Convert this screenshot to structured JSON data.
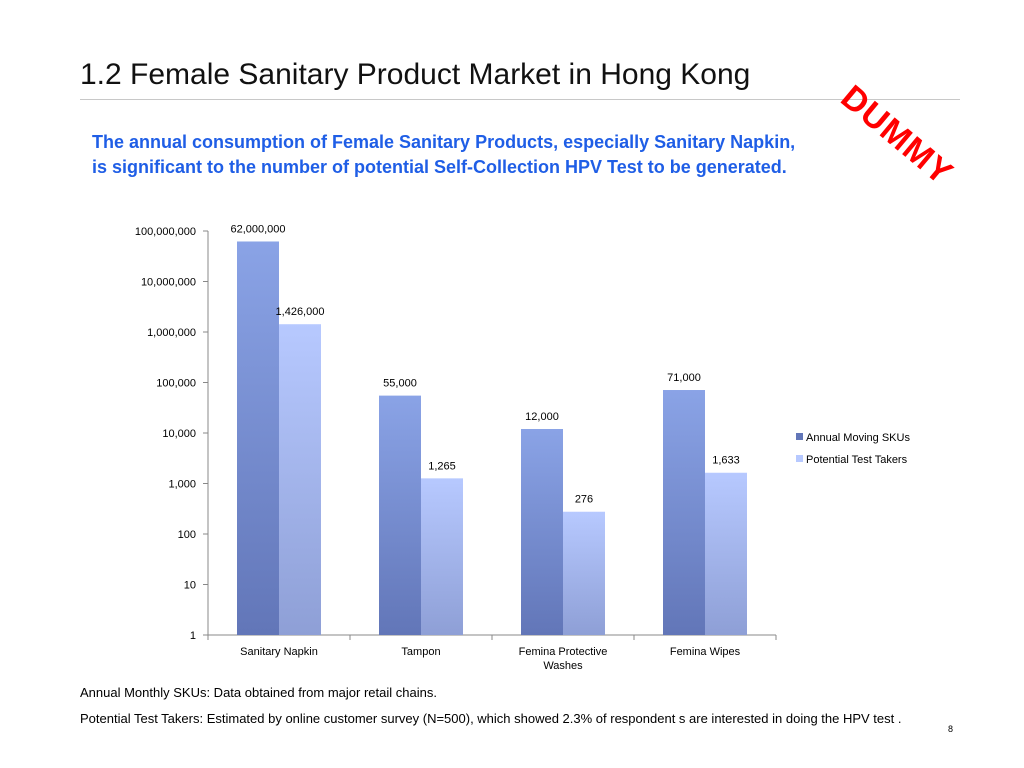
{
  "slide": {
    "title": "1.2 Female Sanitary Product Market in Hong Kong",
    "stamp": "DUMMY",
    "subtitle_lines": [
      "The annual consumption of Female Sanitary Products, especially Sanitary Napkin,",
      "is significant to the number of potential Self-Collection HPV Test to be generated."
    ],
    "notes": [
      "Annual Monthly SKUs: Data obtained from major retail chains.",
      "Potential Test Takers: Estimated  by online customer survey (N=500), which showed 2.3% of respondent s are interested in doing the HPV test ."
    ],
    "page_number": "8"
  },
  "colors": {
    "title_text": "#111111",
    "subtitle_text": "#1f5ee6",
    "stamp": "#ff0000",
    "series_1_top": "#8aa3e6",
    "series_1_bottom": "#6276b8",
    "series_2_top": "#b7c9ff",
    "series_2_bottom": "#8e9fd6"
  },
  "chart_data": {
    "type": "bar",
    "scale": "log",
    "ylim": [
      1,
      100000000
    ],
    "y_ticks": [
      1,
      10,
      100,
      1000,
      10000,
      100000,
      1000000,
      10000000,
      100000000
    ],
    "y_tick_labels": [
      "1",
      "10",
      "100",
      "1,000",
      "10,000",
      "100,000",
      "1,000,000",
      "10,000,000",
      "100,000,000"
    ],
    "categories": [
      [
        "Sanitary Napkin"
      ],
      [
        "Tampon"
      ],
      [
        "Femina Protective",
        "Washes"
      ],
      [
        "Femina Wipes"
      ]
    ],
    "series": [
      {
        "name": "Annual Moving SKUs",
        "values": [
          62000000,
          55000,
          12000,
          71000
        ],
        "labels": [
          "62,000,000",
          "55,000",
          "12,000",
          "71,000"
        ]
      },
      {
        "name": "Potential Test Takers",
        "values": [
          1426000,
          1265,
          276,
          1633
        ],
        "labels": [
          "1,426,000",
          "1,265",
          "276",
          "1,633"
        ]
      }
    ],
    "legend_position": "right",
    "grid": false
  }
}
